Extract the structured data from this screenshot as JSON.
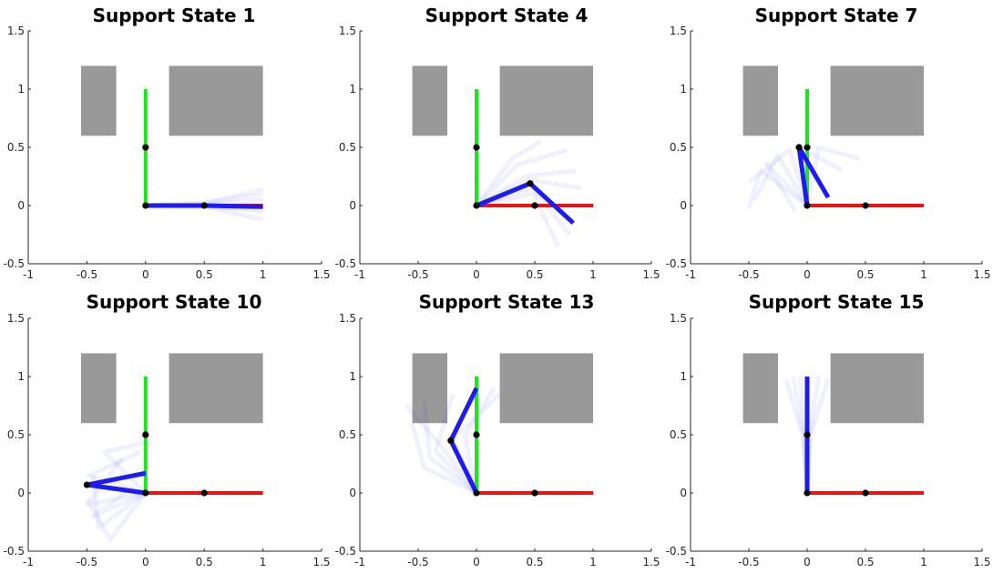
{
  "chart_data": [
    {
      "type": "line",
      "title": "Support State 1",
      "xlim": [
        -1,
        1.5
      ],
      "ylim": [
        -0.5,
        1.5
      ],
      "xticks": [
        "-1",
        "-0.5",
        "0",
        "0.5",
        "1",
        "1.5"
      ],
      "yticks": [
        "-0.5",
        "0",
        "0.5",
        "1",
        "1.5"
      ],
      "obstacles": [
        {
          "x": [
            -0.55,
            -0.25
          ],
          "y": [
            0.6,
            1.2
          ]
        },
        {
          "x": [
            0.2,
            1.0
          ],
          "y": [
            0.6,
            1.2
          ]
        }
      ],
      "green_leg": {
        "x": [
          0,
          0
        ],
        "y": [
          0,
          1
        ]
      },
      "red_leg": {
        "x": [
          0,
          1
        ],
        "y": [
          0,
          0
        ]
      },
      "blue_arm": {
        "x": [
          0,
          0.5,
          1.0
        ],
        "y": [
          0,
          0.0,
          -0.01
        ]
      },
      "blue_color": "#1c1cf0",
      "ghost_arms": [
        [
          [
            0,
            0
          ],
          [
            0.5,
            0.02
          ],
          [
            1.0,
            0.1
          ]
        ],
        [
          [
            0,
            0
          ],
          [
            0.5,
            0.01
          ],
          [
            1.0,
            0.05
          ]
        ],
        [
          [
            0,
            0
          ],
          [
            0.5,
            0
          ],
          [
            1.0,
            -0.05
          ]
        ],
        [
          [
            0,
            0
          ],
          [
            0.5,
            -0.01
          ],
          [
            1.0,
            -0.12
          ]
        ],
        [
          [
            0,
            0
          ],
          [
            0.5,
            0.02
          ],
          [
            1.0,
            0.14
          ]
        ]
      ],
      "points": {
        "x": [
          0,
          0,
          0.5
        ],
        "y": [
          0,
          0.5,
          0
        ]
      }
    },
    {
      "type": "line",
      "title": "Support State 4",
      "xlim": [
        -1,
        1.5
      ],
      "ylim": [
        -0.5,
        1.5
      ],
      "xticks": [
        "-1",
        "-0.5",
        "0",
        "0.5",
        "1",
        "1.5"
      ],
      "yticks": [
        "-0.5",
        "0",
        "0.5",
        "1",
        "1.5"
      ],
      "obstacles": [
        {
          "x": [
            -0.55,
            -0.25
          ],
          "y": [
            0.6,
            1.2
          ]
        },
        {
          "x": [
            0.2,
            1.0
          ],
          "y": [
            0.6,
            1.2
          ]
        }
      ],
      "green_leg": {
        "x": [
          0,
          0
        ],
        "y": [
          0,
          1
        ]
      },
      "red_leg": {
        "x": [
          0,
          1
        ],
        "y": [
          0,
          0
        ]
      },
      "blue_arm": {
        "x": [
          0,
          0.46,
          0.83
        ],
        "y": [
          0,
          0.19,
          -0.15
        ]
      },
      "blue_color": "#1c1cf0",
      "ghost_arms": [
        [
          [
            0,
            0
          ],
          [
            0.42,
            0.25
          ],
          [
            0.85,
            0.3
          ]
        ],
        [
          [
            0,
            0
          ],
          [
            0.45,
            0.22
          ],
          [
            0.9,
            0.15
          ]
        ],
        [
          [
            0,
            0
          ],
          [
            0.48,
            0.15
          ],
          [
            0.8,
            -0.25
          ]
        ],
        [
          [
            0,
            0
          ],
          [
            0.35,
            0.35
          ],
          [
            0.78,
            0.48
          ]
        ],
        [
          [
            0,
            0
          ],
          [
            0.49,
            0.1
          ],
          [
            0.7,
            -0.35
          ]
        ],
        [
          [
            0,
            0
          ],
          [
            0.3,
            0.4
          ],
          [
            0.55,
            0.55
          ]
        ]
      ],
      "points": {
        "x": [
          0,
          0,
          0.46,
          0.5
        ],
        "y": [
          0,
          0.5,
          0.19,
          0
        ]
      }
    },
    {
      "type": "line",
      "title": "Support State 7",
      "xlim": [
        -1,
        1.5
      ],
      "ylim": [
        -0.5,
        1.5
      ],
      "xticks": [
        "-1",
        "-0.5",
        "0",
        "0.5",
        "1",
        "1.5"
      ],
      "yticks": [
        "-0.5",
        "0",
        "0.5",
        "1",
        "1.5"
      ],
      "obstacles": [
        {
          "x": [
            -0.55,
            -0.25
          ],
          "y": [
            0.6,
            1.2
          ]
        },
        {
          "x": [
            0.2,
            1.0
          ],
          "y": [
            0.6,
            1.2
          ]
        }
      ],
      "green_leg": {
        "x": [
          0,
          0
        ],
        "y": [
          0,
          1
        ]
      },
      "red_leg": {
        "x": [
          0,
          1
        ],
        "y": [
          0,
          0
        ]
      },
      "blue_arm": {
        "x": [
          0,
          -0.07,
          0.18
        ],
        "y": [
          0,
          0.5,
          0.07
        ]
      },
      "blue_color": "#1c1cf0",
      "ghost_arms": [
        [
          [
            0,
            0
          ],
          [
            -0.25,
            0.43
          ],
          [
            -0.45,
            0.05
          ]
        ],
        [
          [
            0,
            0
          ],
          [
            -0.15,
            0.48
          ],
          [
            -0.5,
            0.2
          ]
        ],
        [
          [
            0,
            0
          ],
          [
            -0.35,
            0.36
          ],
          [
            -0.1,
            -0.05
          ]
        ],
        [
          [
            0,
            0
          ],
          [
            0.1,
            0.5
          ],
          [
            0.45,
            0.4
          ]
        ],
        [
          [
            0,
            0
          ],
          [
            -0.05,
            0.5
          ],
          [
            0.3,
            0.3
          ]
        ],
        [
          [
            0,
            0
          ],
          [
            -0.4,
            0.3
          ],
          [
            -0.5,
            -0.02
          ]
        ]
      ],
      "points": {
        "x": [
          0,
          0,
          -0.07,
          0.5
        ],
        "y": [
          0,
          0.5,
          0.5,
          0
        ]
      }
    },
    {
      "type": "line",
      "title": "Support State 10",
      "xlim": [
        -1,
        1.5
      ],
      "ylim": [
        -0.5,
        1.5
      ],
      "xticks": [
        "-1",
        "-0.5",
        "0",
        "0.5",
        "1",
        "1.5"
      ],
      "yticks": [
        "-0.5",
        "0",
        "0.5",
        "1",
        "1.5"
      ],
      "obstacles": [
        {
          "x": [
            -0.55,
            -0.25
          ],
          "y": [
            0.6,
            1.2
          ]
        },
        {
          "x": [
            0.2,
            1.0
          ],
          "y": [
            0.6,
            1.2
          ]
        }
      ],
      "green_leg": {
        "x": [
          0,
          0
        ],
        "y": [
          0,
          1
        ]
      },
      "red_leg": {
        "x": [
          0,
          1
        ],
        "y": [
          0,
          0
        ]
      },
      "blue_arm": {
        "x": [
          0,
          -0.5,
          0
        ],
        "y": [
          0,
          0.07,
          0.17
        ]
      },
      "blue_color": "#1c1cf0",
      "ghost_arms": [
        [
          [
            0,
            0
          ],
          [
            -0.45,
            -0.2
          ],
          [
            -0.1,
            0.05
          ]
        ],
        [
          [
            0,
            0
          ],
          [
            -0.48,
            0.15
          ],
          [
            -0.05,
            0.35
          ]
        ],
        [
          [
            0,
            0
          ],
          [
            -0.4,
            -0.3
          ],
          [
            -0.45,
            0.15
          ]
        ],
        [
          [
            0,
            0
          ],
          [
            -0.35,
            0.35
          ],
          [
            0.05,
            0.45
          ]
        ],
        [
          [
            0,
            0
          ],
          [
            -0.49,
            -0.1
          ],
          [
            -0.2,
            0.3
          ]
        ],
        [
          [
            0,
            0
          ],
          [
            -0.3,
            -0.4
          ],
          [
            -0.5,
            -0.05
          ]
        ]
      ],
      "points": {
        "x": [
          0,
          0,
          -0.5,
          0.5
        ],
        "y": [
          0,
          0.5,
          0.07,
          0
        ]
      }
    },
    {
      "type": "line",
      "title": "Support State 13",
      "xlim": [
        -1,
        1.5
      ],
      "ylim": [
        -0.5,
        1.5
      ],
      "xticks": [
        "-1",
        "-0.5",
        "0",
        "0.5",
        "1",
        "1.5"
      ],
      "yticks": [
        "-0.5",
        "0",
        "0.5",
        "1",
        "1.5"
      ],
      "obstacles": [
        {
          "x": [
            -0.55,
            -0.25
          ],
          "y": [
            0.6,
            1.2
          ]
        },
        {
          "x": [
            0.2,
            1.0
          ],
          "y": [
            0.6,
            1.2
          ]
        }
      ],
      "green_leg": {
        "x": [
          0,
          0
        ],
        "y": [
          0,
          1
        ]
      },
      "red_leg": {
        "x": [
          0,
          1
        ],
        "y": [
          0,
          0
        ]
      },
      "blue_arm": {
        "x": [
          0,
          -0.22,
          0
        ],
        "y": [
          0,
          0.45,
          0.9
        ]
      },
      "blue_color": "#1c1cf0",
      "ghost_arms": [
        [
          [
            0,
            0
          ],
          [
            -0.3,
            0.4
          ],
          [
            -0.6,
            0.75
          ]
        ],
        [
          [
            0,
            0
          ],
          [
            -0.4,
            0.3
          ],
          [
            -0.45,
            0.8
          ]
        ],
        [
          [
            0,
            0
          ],
          [
            -0.2,
            0.46
          ],
          [
            0.2,
            0.85
          ]
        ],
        [
          [
            0,
            0
          ],
          [
            -0.45,
            0.22
          ],
          [
            -0.55,
            0.6
          ]
        ],
        [
          [
            0,
            0
          ],
          [
            -0.1,
            0.49
          ],
          [
            0.15,
            0.9
          ]
        ],
        [
          [
            0,
            0
          ],
          [
            -0.35,
            0.36
          ],
          [
            -0.2,
            0.85
          ]
        ]
      ],
      "points": {
        "x": [
          0,
          0,
          -0.22,
          0.5
        ],
        "y": [
          0,
          0.5,
          0.45,
          0
        ]
      }
    },
    {
      "type": "line",
      "title": "Support State 15",
      "xlim": [
        -1,
        1.5
      ],
      "ylim": [
        -0.5,
        1.5
      ],
      "xticks": [
        "-1",
        "-0.5",
        "0",
        "0.5",
        "1",
        "1.5"
      ],
      "yticks": [
        "-0.5",
        "0",
        "0.5",
        "1",
        "1.5"
      ],
      "obstacles": [
        {
          "x": [
            -0.55,
            -0.25
          ],
          "y": [
            0.6,
            1.2
          ]
        },
        {
          "x": [
            0.2,
            1.0
          ],
          "y": [
            0.6,
            1.2
          ]
        }
      ],
      "green_leg": {
        "x": [
          0,
          0
        ],
        "y": [
          0,
          1
        ]
      },
      "red_leg": {
        "x": [
          0,
          1
        ],
        "y": [
          0,
          0
        ]
      },
      "blue_arm": {
        "x": [
          0,
          0,
          0
        ],
        "y": [
          0,
          0.5,
          1.0
        ]
      },
      "blue_color": "#1c1cf0",
      "ghost_arms": [
        [
          [
            0,
            0
          ],
          [
            -0.03,
            0.5
          ],
          [
            -0.12,
            1.0
          ]
        ],
        [
          [
            0,
            0
          ],
          [
            0.02,
            0.5
          ],
          [
            0.1,
            1.0
          ]
        ],
        [
          [
            0,
            0
          ],
          [
            -0.02,
            0.5
          ],
          [
            -0.06,
            1.0
          ]
        ],
        [
          [
            0,
            0
          ],
          [
            0.03,
            0.5
          ],
          [
            0.18,
            0.98
          ]
        ],
        [
          [
            0,
            0
          ],
          [
            -0.04,
            0.5
          ],
          [
            -0.18,
            0.97
          ]
        ]
      ],
      "points": {
        "x": [
          0,
          0,
          0.5
        ],
        "y": [
          0,
          0.5,
          0
        ]
      }
    }
  ],
  "colors": {
    "obstacle": "#999999",
    "green_leg": "#1ee61e",
    "red_leg": "#ee1111",
    "point": "#000000",
    "ghost": "#3333ee"
  }
}
